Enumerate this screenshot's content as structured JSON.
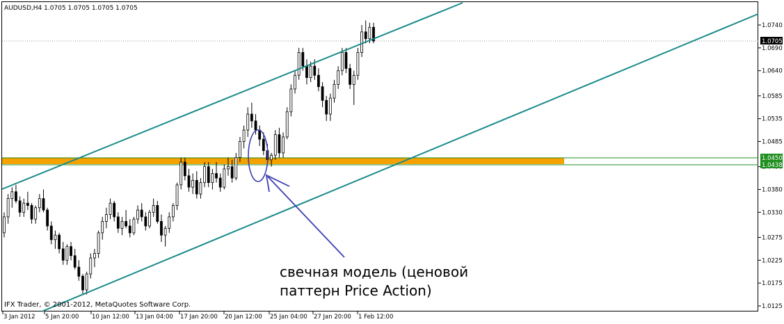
{
  "header": {
    "symbol_line": "AUDUSD,H4  1.0705 1.0705 1.0705 1.0705"
  },
  "copyright": "IFX Trader, © 2001-2012, MetaQuotes Software Corp.",
  "annotation": {
    "line1": "свечная модель (ценовой",
    "line2": "паттерн Price Action)"
  },
  "colors": {
    "background": "#ffffff",
    "candle": "#000000",
    "channel_lines": "#1a8a8a",
    "support_zone": "#f5a100",
    "horizontal_lines": "#1f8f1f",
    "annotation_stroke": "#3a3fb0",
    "current_price_bg": "#000000",
    "current_price_fg": "#ffffff",
    "level_tag_bg": "#1f8f1f",
    "level_tag_fg": "#ffffff"
  },
  "chart_data": {
    "type": "candlestick",
    "symbol": "AUDUSD",
    "timeframe": "H4",
    "y_ticks": [
      "1.0740",
      "1.0690",
      "1.0640",
      "1.0585",
      "1.0535",
      "1.0485",
      "1.0430",
      "1.0380",
      "1.0330",
      "1.0275",
      "1.0225",
      "1.0175",
      "1.0125"
    ],
    "ylim": [
      1.0115,
      1.077
    ],
    "x_ticks": [
      "3 Jan 2012",
      "5 Jan 20:00",
      "10 Jan 12:00",
      "13 Jan 04:00",
      "17 Jan 20:00",
      "20 Jan 12:00",
      "25 Jan 04:00",
      "27 Jan 20:00",
      "1 Feb 12:00"
    ],
    "current_price": "1.0705",
    "support_levels": [
      "1.0450",
      "1.0438"
    ],
    "ohlc_profile": [
      [
        1.0285,
        1.033,
        1.0275,
        1.032
      ],
      [
        1.032,
        1.037,
        1.0305,
        1.036
      ],
      [
        1.036,
        1.0385,
        1.034,
        1.0375
      ],
      [
        1.0375,
        1.039,
        1.035,
        1.0355
      ],
      [
        1.0355,
        1.0365,
        1.032,
        1.033
      ],
      [
        1.033,
        1.036,
        1.032,
        1.035
      ],
      [
        1.035,
        1.0375,
        1.0335,
        1.0345
      ],
      [
        1.0345,
        1.035,
        1.0305,
        1.0315
      ],
      [
        1.0315,
        1.0345,
        1.0305,
        1.034
      ],
      [
        1.034,
        1.037,
        1.033,
        1.036
      ],
      [
        1.036,
        1.038,
        1.033,
        1.0335
      ],
      [
        1.0335,
        1.034,
        1.029,
        1.03
      ],
      [
        1.03,
        1.031,
        1.026,
        1.027
      ],
      [
        1.027,
        1.029,
        1.025,
        1.028
      ],
      [
        1.028,
        1.0285,
        1.024,
        1.025
      ],
      [
        1.025,
        1.0265,
        1.0215,
        1.0225
      ],
      [
        1.0225,
        1.026,
        1.0215,
        1.0255
      ],
      [
        1.0255,
        1.0265,
        1.0225,
        1.0235
      ],
      [
        1.0235,
        1.025,
        1.0205,
        1.021
      ],
      [
        1.021,
        1.0225,
        1.018,
        1.019
      ],
      [
        1.019,
        1.0195,
        1.015,
        1.016
      ],
      [
        1.016,
        1.02,
        1.015,
        1.0195
      ],
      [
        1.0195,
        1.024,
        1.0185,
        1.023
      ],
      [
        1.023,
        1.025,
        1.021,
        1.024
      ],
      [
        1.024,
        1.029,
        1.023,
        1.0285
      ],
      [
        1.0285,
        1.032,
        1.027,
        1.031
      ],
      [
        1.031,
        1.034,
        1.0295,
        1.0325
      ],
      [
        1.0325,
        1.036,
        1.0315,
        1.035
      ],
      [
        1.035,
        1.0355,
        1.031,
        1.032
      ],
      [
        1.032,
        1.033,
        1.0285,
        1.0295
      ],
      [
        1.0295,
        1.032,
        1.028,
        1.031
      ],
      [
        1.031,
        1.0335,
        1.0295,
        1.03
      ],
      [
        1.03,
        1.0315,
        1.0275,
        1.0285
      ],
      [
        1.0285,
        1.032,
        1.028,
        1.0315
      ],
      [
        1.0315,
        1.0345,
        1.0305,
        1.0335
      ],
      [
        1.0335,
        1.035,
        1.031,
        1.032
      ],
      [
        1.032,
        1.033,
        1.029,
        1.03
      ],
      [
        1.03,
        1.0335,
        1.0295,
        1.033
      ],
      [
        1.033,
        1.036,
        1.032,
        1.0345
      ],
      [
        1.0345,
        1.0355,
        1.0305,
        1.031
      ],
      [
        1.031,
        1.0325,
        1.0265,
        1.028
      ],
      [
        1.028,
        1.03,
        1.0255,
        1.0295
      ],
      [
        1.0295,
        1.033,
        1.0285,
        1.032
      ],
      [
        1.032,
        1.035,
        1.031,
        1.0345
      ],
      [
        1.0345,
        1.0395,
        1.0335,
        1.039
      ],
      [
        1.039,
        1.045,
        1.038,
        1.044
      ],
      [
        1.044,
        1.045,
        1.04,
        1.041
      ],
      [
        1.041,
        1.0425,
        1.0375,
        1.0385
      ],
      [
        1.0385,
        1.0415,
        1.037,
        1.04
      ],
      [
        1.04,
        1.042,
        1.036,
        1.037
      ],
      [
        1.037,
        1.0405,
        1.036,
        1.0395
      ],
      [
        1.0395,
        1.044,
        1.0385,
        1.043
      ],
      [
        1.043,
        1.044,
        1.0385,
        1.0395
      ],
      [
        1.0395,
        1.0425,
        1.038,
        1.0415
      ],
      [
        1.0415,
        1.044,
        1.0395,
        1.0405
      ],
      [
        1.0405,
        1.0415,
        1.0375,
        1.0385
      ],
      [
        1.0385,
        1.0435,
        1.038,
        1.0425
      ],
      [
        1.0425,
        1.045,
        1.041,
        1.043
      ],
      [
        1.043,
        1.0445,
        1.0395,
        1.0405
      ],
      [
        1.0405,
        1.046,
        1.04,
        1.045
      ],
      [
        1.045,
        1.0495,
        1.044,
        1.0485
      ],
      [
        1.0485,
        1.052,
        1.047,
        1.051
      ],
      [
        1.051,
        1.056,
        1.0495,
        1.0545
      ],
      [
        1.0545,
        1.057,
        1.0515,
        1.053
      ],
      [
        1.053,
        1.0545,
        1.05,
        1.051
      ],
      [
        1.051,
        1.052,
        1.0475,
        1.049
      ],
      [
        1.049,
        1.0505,
        1.0455,
        1.0465
      ],
      [
        1.0465,
        1.048,
        1.044,
        1.0445
      ],
      [
        1.0445,
        1.046,
        1.043,
        1.0455
      ],
      [
        1.0455,
        1.051,
        1.0445,
        1.05
      ],
      [
        1.05,
        1.0515,
        1.045,
        1.046
      ],
      [
        1.046,
        1.0505,
        1.045,
        1.0495
      ],
      [
        1.0495,
        1.056,
        1.049,
        1.055
      ],
      [
        1.055,
        1.061,
        1.054,
        1.06
      ],
      [
        1.06,
        1.064,
        1.059,
        1.063
      ],
      [
        1.063,
        1.069,
        1.062,
        1.068
      ],
      [
        1.068,
        1.069,
        1.064,
        1.065
      ],
      [
        1.065,
        1.0665,
        1.061,
        1.0625
      ],
      [
        1.0625,
        1.066,
        1.0615,
        1.065
      ],
      [
        1.065,
        1.0665,
        1.062,
        1.063
      ],
      [
        1.063,
        1.0645,
        1.0595,
        1.0605
      ],
      [
        1.0605,
        1.0615,
        1.056,
        1.0575
      ],
      [
        1.0575,
        1.0585,
        1.053,
        1.0545
      ],
      [
        1.0545,
        1.059,
        1.053,
        1.058
      ],
      [
        1.058,
        1.062,
        1.057,
        1.061
      ],
      [
        1.061,
        1.065,
        1.06,
        1.064
      ],
      [
        1.064,
        1.069,
        1.063,
        1.068
      ],
      [
        1.068,
        1.069,
        1.0635,
        1.0645
      ],
      [
        1.0645,
        1.0655,
        1.06,
        1.061
      ],
      [
        1.061,
        1.064,
        1.0565,
        1.063
      ],
      [
        1.063,
        1.069,
        1.062,
        1.068
      ],
      [
        1.068,
        1.074,
        1.067,
        1.0725
      ],
      [
        1.0725,
        1.075,
        1.07,
        1.071
      ],
      [
        1.071,
        1.0745,
        1.07,
        1.0735
      ],
      [
        1.0735,
        1.0745,
        1.07,
        1.0705
      ]
    ]
  }
}
